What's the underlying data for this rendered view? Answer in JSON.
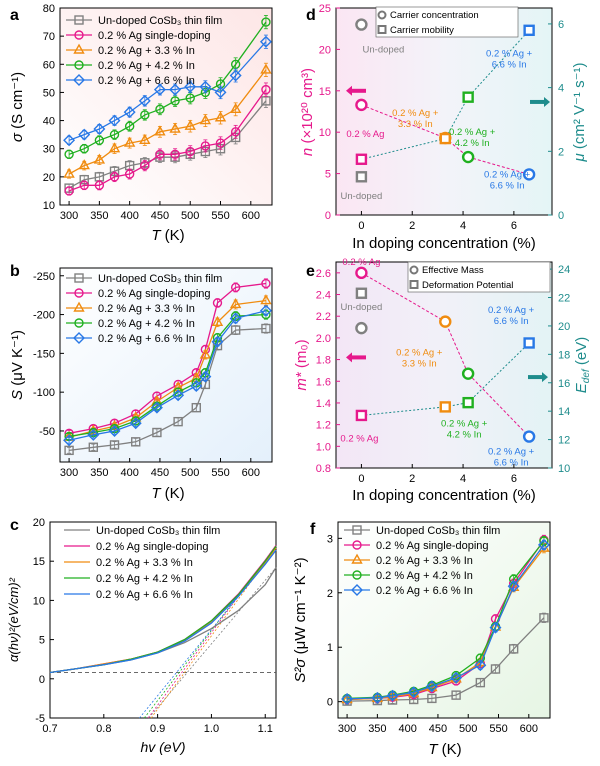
{
  "colors": {
    "undoped": "#808080",
    "ag": "#e6198c",
    "ag_in33": "#f08c10",
    "ag_in42": "#20b020",
    "ag_in66": "#2878e6",
    "teal": "#1e8c8c",
    "magenta": "#e6198c"
  },
  "chart_data": [
    {
      "id": "a",
      "panel_label": "a",
      "type": "line",
      "xlabel": "T",
      "xunit": "(K)",
      "ylabel": "σ",
      "yunit": "(S cm⁻¹)",
      "xlim": [
        285,
        635
      ],
      "ylim": [
        10,
        80
      ],
      "xticks": [
        300,
        350,
        400,
        450,
        500,
        550,
        600
      ],
      "yticks": [
        10,
        20,
        30,
        40,
        50,
        60,
        70,
        80
      ],
      "legend_position": "top-left",
      "x": [
        300,
        325,
        350,
        375,
        400,
        425,
        450,
        475,
        500,
        525,
        550,
        575,
        625
      ],
      "series": [
        {
          "name": "Un-doped CoSb₃ thin film",
          "color_key": "undoped",
          "marker": "square",
          "values": [
            16,
            19,
            20,
            22,
            24,
            25,
            27,
            27,
            28,
            29,
            30,
            34,
            47
          ]
        },
        {
          "name": "0.2 % Ag single-doping",
          "color_key": "ag",
          "marker": "circle",
          "values": [
            15,
            17,
            17,
            20,
            21,
            24,
            28,
            28,
            29,
            31,
            32,
            36,
            51
          ]
        },
        {
          "name": "0.2 % Ag + 3.3 % In",
          "color_key": "ag_in33",
          "marker": "triangle",
          "values": [
            21,
            24,
            26,
            30,
            32,
            33,
            36,
            37,
            38,
            40,
            41,
            44,
            58
          ]
        },
        {
          "name": "0.2 % Ag + 4.2 % In",
          "color_key": "ag_in42",
          "marker": "circle",
          "values": [
            28,
            30,
            33,
            35,
            38,
            42,
            44,
            47,
            48,
            50,
            53,
            60,
            75
          ]
        },
        {
          "name": "0.2 % Ag + 6.6 % In",
          "color_key": "ag_in66",
          "marker": "diamond",
          "values": [
            33,
            35,
            37,
            40,
            43,
            47,
            51,
            51,
            52,
            52,
            50,
            56,
            68
          ]
        }
      ]
    },
    {
      "id": "b",
      "panel_label": "b",
      "type": "line",
      "xlabel": "T",
      "xunit": "(K)",
      "ylabel": "S",
      "yunit": "(μV K⁻¹)",
      "xlim": [
        285,
        635
      ],
      "ylim": [
        -10,
        -260
      ],
      "xticks": [
        300,
        350,
        400,
        450,
        500,
        550,
        600
      ],
      "yticks": [
        -50,
        -100,
        -150,
        -200,
        -250
      ],
      "legend_position": "top-left",
      "x": [
        300,
        340,
        375,
        410,
        445,
        480,
        510,
        525,
        545,
        575,
        625
      ],
      "series": [
        {
          "name": "Un-doped CoSb₃ thin film",
          "color_key": "undoped",
          "marker": "square",
          "values": [
            -25,
            -29,
            -32,
            -36,
            -48,
            -62,
            -80,
            -110,
            -160,
            -180,
            -182
          ]
        },
        {
          "name": "0.2 % Ag single-doping",
          "color_key": "ag",
          "marker": "circle",
          "values": [
            -47,
            -53,
            -60,
            -72,
            -95,
            -110,
            -125,
            -155,
            -215,
            -235,
            -240
          ]
        },
        {
          "name": "0.2 % Ag + 3.3 % In",
          "color_key": "ag_in33",
          "marker": "triangle",
          "values": [
            -42,
            -50,
            -56,
            -67,
            -88,
            -106,
            -118,
            -148,
            -190,
            -213,
            -218
          ]
        },
        {
          "name": "0.2 % Ag + 4.2 % In",
          "color_key": "ag_in42",
          "marker": "circle",
          "values": [
            -43,
            -48,
            -53,
            -63,
            -82,
            -100,
            -112,
            -125,
            -170,
            -198,
            -200
          ]
        },
        {
          "name": "0.2 % Ag + 6.6 % In",
          "color_key": "ag_in66",
          "marker": "diamond",
          "values": [
            -38,
            -45,
            -50,
            -60,
            -80,
            -96,
            -108,
            -120,
            -165,
            -195,
            -205
          ]
        }
      ]
    },
    {
      "id": "c",
      "panel_label": "c",
      "type": "line",
      "xlabel": "hv (eV)",
      "ylabel": "α(hν)²(eV/cm)²",
      "xlim": [
        0.7,
        1.12
      ],
      "ylim": [
        -5,
        20
      ],
      "xticks": [
        0.7,
        0.8,
        0.9,
        1.0,
        1.1
      ],
      "yticks": [
        -5,
        0,
        5,
        10,
        15,
        20
      ],
      "legend_position": "top-left",
      "baseline_y": 0.8,
      "x": [
        0.7,
        0.75,
        0.8,
        0.85,
        0.9,
        0.95,
        1.0,
        1.05,
        1.1,
        1.12
      ],
      "series": [
        {
          "name": "Un-doped CoSb₃ thin film",
          "color_key": "undoped",
          "values": [
            0.8,
            1.3,
            1.8,
            2.4,
            3.3,
            4.6,
            6.4,
            8.7,
            12.0,
            14.2
          ]
        },
        {
          "name": "0.2 % Ag  single-doping",
          "color_key": "ag",
          "values": [
            0.8,
            1.3,
            1.9,
            2.5,
            3.4,
            5.0,
            7.4,
            10.8,
            15.1,
            17.0
          ]
        },
        {
          "name": "0.2 % Ag + 3.3 % In",
          "color_key": "ag_in33",
          "values": [
            0.8,
            1.3,
            1.9,
            2.5,
            3.4,
            4.9,
            7.2,
            10.6,
            14.8,
            16.7
          ]
        },
        {
          "name": "0.2 % Ag + 4.2 % In",
          "color_key": "ag_in42",
          "values": [
            0.8,
            1.3,
            1.8,
            2.5,
            3.4,
            5.0,
            7.4,
            10.7,
            15.0,
            16.9
          ]
        },
        {
          "name": "0.2 % Ag + 6.6 % In",
          "color_key": "ag_in66",
          "values": [
            0.8,
            1.3,
            1.8,
            2.4,
            3.3,
            4.8,
            7.1,
            10.5,
            14.6,
            16.4
          ]
        }
      ],
      "tangent_intercepts_ev": [
        0.955,
        0.945,
        0.95,
        0.94,
        0.935
      ]
    },
    {
      "id": "d",
      "panel_label": "d",
      "type": "scatter",
      "xlabel": "In doping concentration (%)",
      "ylabel_left": "n",
      "ylabel_left_unit": "(×10²⁰ cm³)",
      "ylabel_right": "μ",
      "ylabel_right_unit": "(cm² V⁻¹ s⁻¹)",
      "xlim": [
        -1,
        7.5
      ],
      "ylim_left": [
        0,
        25
      ],
      "ylim_right": [
        0,
        6.5
      ],
      "xticks": [
        0,
        2,
        4,
        6
      ],
      "yticks_left": [
        0,
        5,
        10,
        15,
        20,
        25
      ],
      "yticks_right": [
        0,
        2,
        4,
        6
      ],
      "legend_position": "top-center",
      "legend": [
        "Carrier concentration",
        "Carrier mobility"
      ],
      "carrier_concentration": [
        {
          "x": 0,
          "y": 23,
          "color_key": "undoped",
          "label": "Un-doped"
        },
        {
          "x": 0,
          "y": 13.3,
          "color_key": "ag",
          "label": "0.2 % Ag"
        },
        {
          "x": 3.3,
          "y": 9.3,
          "color_key": "ag_in33",
          "label": "0.2 % Ag +\n3.3 % In"
        },
        {
          "x": 4.2,
          "y": 7.0,
          "color_key": "ag_in42",
          "label": "0.2 % Ag +\n4.2 % In"
        },
        {
          "x": 6.6,
          "y": 4.9,
          "color_key": "ag_in66",
          "label": "0.2 % Ag +\n6.6 % In"
        }
      ],
      "carrier_mobility": [
        {
          "x": 0,
          "y": 1.2,
          "color_key": "undoped",
          "label": "Un-doped"
        },
        {
          "x": 0,
          "y": 1.75,
          "color_key": "ag"
        },
        {
          "x": 3.3,
          "y": 2.4,
          "color_key": "ag_in33"
        },
        {
          "x": 4.2,
          "y": 3.7,
          "color_key": "ag_in42"
        },
        {
          "x": 6.6,
          "y": 5.8,
          "color_key": "ag_in66",
          "label": "0.2 % Ag +\n6.6 % In"
        }
      ]
    },
    {
      "id": "e",
      "panel_label": "e",
      "type": "scatter",
      "xlabel": "In doping concentration (%)",
      "ylabel_left": "m*",
      "ylabel_left_unit": "(m₀)",
      "ylabel_right": "E",
      "ylabel_right_sub": "def",
      "ylabel_right_unit": "(eV)",
      "xlim": [
        -1,
        7.5
      ],
      "ylim_left": [
        0.8,
        2.7
      ],
      "ylim_right": [
        10,
        24.5
      ],
      "xticks": [
        0,
        2,
        4,
        6
      ],
      "yticks_left": [
        0.8,
        1.0,
        1.2,
        1.4,
        1.6,
        1.8,
        2.0,
        2.2,
        2.4,
        2.6
      ],
      "yticks_right": [
        10,
        12,
        14,
        16,
        18,
        20,
        22,
        24
      ],
      "legend_position": "top-right",
      "legend": [
        "Effective Mass",
        "Deformation Potential"
      ],
      "effective_mass": [
        {
          "x": 0,
          "y": 2.09,
          "color_key": "undoped",
          "label": "Un-doped"
        },
        {
          "x": 0,
          "y": 2.6,
          "color_key": "ag",
          "label": "0.2 % Ag"
        },
        {
          "x": 3.3,
          "y": 2.15,
          "color_key": "ag_in33",
          "label": "0.2 % Ag +\n3.3 % In"
        },
        {
          "x": 4.2,
          "y": 1.67,
          "color_key": "ag_in42"
        },
        {
          "x": 6.6,
          "y": 1.09,
          "color_key": "ag_in66",
          "label": "0.2 % Ag +\n6.6 % In"
        }
      ],
      "deformation_potential": [
        {
          "x": 0,
          "y": 22.3,
          "color_key": "undoped"
        },
        {
          "x": 0,
          "y": 13.7,
          "color_key": "ag",
          "label": "0.2 % Ag"
        },
        {
          "x": 3.3,
          "y": 14.3,
          "color_key": "ag_in33"
        },
        {
          "x": 4.2,
          "y": 14.6,
          "color_key": "ag_in42",
          "label": "0.2 % Ag +\n4.2 % In"
        },
        {
          "x": 6.6,
          "y": 18.8,
          "color_key": "ag_in66",
          "label": "0.2 % Ag +\n6.6 % In"
        }
      ]
    },
    {
      "id": "f",
      "panel_label": "f",
      "type": "line",
      "xlabel": "T",
      "xunit": "(K)",
      "ylabel": "S²σ",
      "yunit": "(μW cm⁻¹ K⁻²)",
      "xlim": [
        285,
        635
      ],
      "ylim": [
        -0.3,
        3.3
      ],
      "xticks": [
        300,
        350,
        400,
        450,
        500,
        550,
        600
      ],
      "yticks": [
        0,
        1,
        2,
        3
      ],
      "legend_position": "top-left",
      "x": [
        300,
        350,
        375,
        410,
        440,
        480,
        520,
        545,
        575,
        625
      ],
      "series": [
        {
          "name": "Un-doped CoSb₃ thin film",
          "color_key": "undoped",
          "marker": "square",
          "values": [
            0.01,
            0.02,
            0.03,
            0.04,
            0.06,
            0.12,
            0.35,
            0.6,
            0.97,
            1.54
          ]
        },
        {
          "name": "0.2 % Ag single-doping",
          "color_key": "ag",
          "marker": "circle",
          "values": [
            0.04,
            0.06,
            0.08,
            0.13,
            0.24,
            0.38,
            0.7,
            1.52,
            2.17,
            2.97
          ]
        },
        {
          "name": "0.2 % Ag + 3.3 % In",
          "color_key": "ag_in33",
          "marker": "triangle",
          "values": [
            0.04,
            0.06,
            0.09,
            0.15,
            0.26,
            0.42,
            0.72,
            1.37,
            2.1,
            2.82
          ]
        },
        {
          "name": "0.2 % Ag + 4.2 % In",
          "color_key": "ag_in42",
          "marker": "circle",
          "values": [
            0.06,
            0.08,
            0.12,
            0.19,
            0.3,
            0.48,
            0.8,
            1.38,
            2.25,
            2.95
          ]
        },
        {
          "name": "0.2 % Ag + 6.6 % In",
          "color_key": "ag_in66",
          "marker": "diamond",
          "values": [
            0.05,
            0.07,
            0.11,
            0.17,
            0.28,
            0.44,
            0.67,
            1.36,
            2.12,
            2.88
          ]
        }
      ]
    }
  ]
}
